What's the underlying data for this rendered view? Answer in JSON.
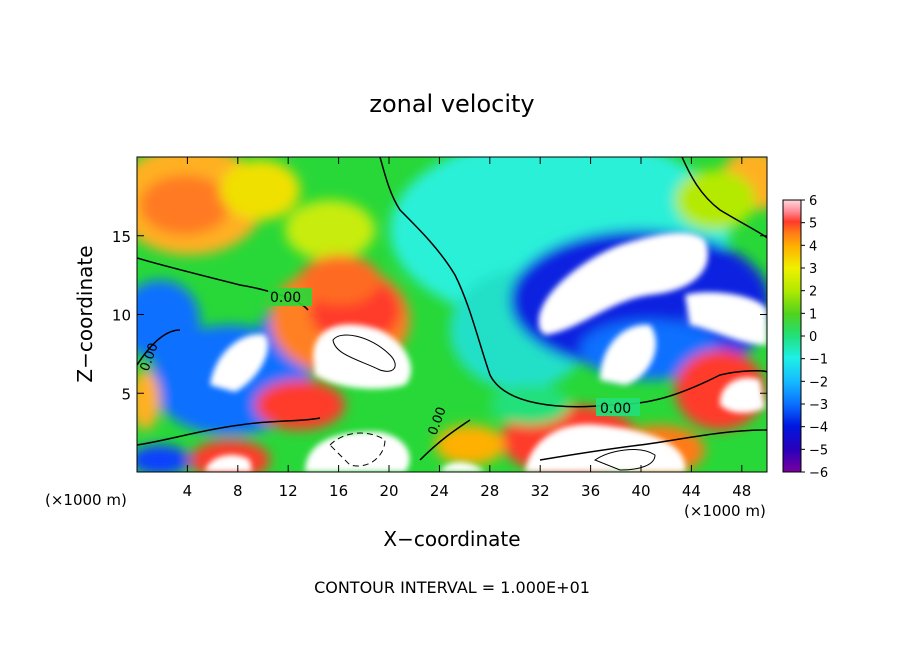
{
  "chart_data": {
    "type": "heatmap",
    "title": "zonal velocity",
    "xlabel": "X−coordinate",
    "ylabel": "Z−coordinate",
    "x_units": "(×1000 m)",
    "z_units": "(×1000 m)",
    "xlim": [
      0,
      50
    ],
    "ylim": [
      0,
      20
    ],
    "x_ticks": [
      "4",
      "8",
      "12",
      "16",
      "20",
      "24",
      "28",
      "32",
      "36",
      "40",
      "44",
      "48"
    ],
    "y_ticks": [
      "5",
      "10",
      "15"
    ],
    "colorbar": {
      "range": [
        -6,
        6
      ],
      "tick_labels": [
        "6",
        "5",
        "4",
        "3",
        "2",
        "1",
        "0",
        "−1",
        "−2",
        "−3",
        "−4",
        "−5",
        "−6"
      ],
      "colors": [
        "#7a00a0",
        "#2a00b8",
        "#0018e0",
        "#0a70ff",
        "#14b8ff",
        "#1ef0e6",
        "#22e07a",
        "#4ed21e",
        "#b4ea00",
        "#f0f000",
        "#ffb000",
        "#ff7a18",
        "#ff3a2a",
        "#ff8e9a",
        "#ffffff"
      ]
    },
    "contour_labels": [
      "0.00",
      "0.00",
      "0.00",
      "0.00"
    ],
    "footer": "CONTOUR INTERVAL = 1.000E+01",
    "grid": false,
    "legend": "colorbar-right"
  }
}
